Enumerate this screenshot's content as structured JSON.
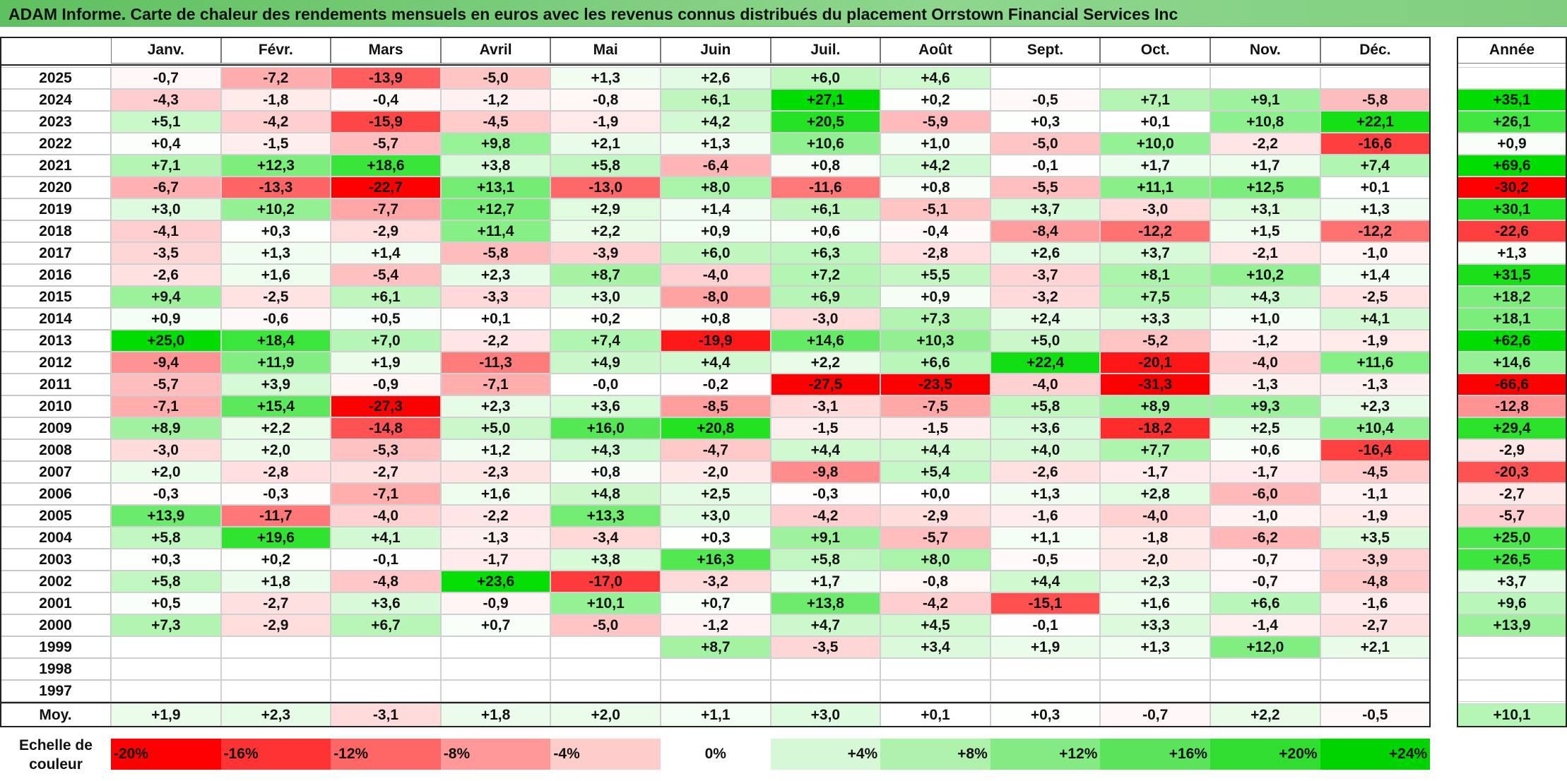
{
  "title": "ADAM Informe. Carte de chaleur des rendements mensuels en euros avec les revenus connus distribués du placement Orrstown Financial Services Inc",
  "chart_data": {
    "type": "heatmap",
    "title": "ADAM Informe. Carte de chaleur des rendements mensuels en euros avec les revenus connus distribués du placement Orrstown Financial Services Inc",
    "columns": [
      "Janv.",
      "Févr.",
      "Mars",
      "Avril",
      "Mai",
      "Juin",
      "Juil.",
      "Août",
      "Sept.",
      "Oct.",
      "Nov.",
      "Déc."
    ],
    "year_column_label": "Année",
    "rows": [
      {
        "year": "2025",
        "values": [
          "-0,7",
          "-7,2",
          "-13,9",
          "-5,0",
          "+1,3",
          "+2,6",
          "+6,0",
          "+4,6",
          "",
          "",
          "",
          ""
        ],
        "annual": ""
      },
      {
        "year": "2024",
        "values": [
          "-4,3",
          "-1,8",
          "-0,4",
          "-1,2",
          "-0,8",
          "+6,1",
          "+27,1",
          "+0,2",
          "-0,5",
          "+7,1",
          "+9,1",
          "-5,8"
        ],
        "annual": "+35,1"
      },
      {
        "year": "2023",
        "values": [
          "+5,1",
          "-4,2",
          "-15,9",
          "-4,5",
          "-1,9",
          "+4,2",
          "+20,5",
          "-5,9",
          "+0,3",
          "+0,1",
          "+10,8",
          "+22,1"
        ],
        "annual": "+26,1"
      },
      {
        "year": "2022",
        "values": [
          "+0,4",
          "-1,5",
          "-5,7",
          "+9,8",
          "+2,1",
          "+1,3",
          "+10,6",
          "+1,0",
          "-5,0",
          "+10,0",
          "-2,2",
          "-16,6"
        ],
        "annual": "+0,9"
      },
      {
        "year": "2021",
        "values": [
          "+7,1",
          "+12,3",
          "+18,6",
          "+3,8",
          "+5,8",
          "-6,4",
          "+0,8",
          "+4,2",
          "-0,1",
          "+1,7",
          "+1,7",
          "+7,4"
        ],
        "annual": "+69,6"
      },
      {
        "year": "2020",
        "values": [
          "-6,7",
          "-13,3",
          "-22,7",
          "+13,1",
          "-13,0",
          "+8,0",
          "-11,6",
          "+0,8",
          "-5,5",
          "+11,1",
          "+12,5",
          "+0,1"
        ],
        "annual": "-30,2"
      },
      {
        "year": "2019",
        "values": [
          "+3,0",
          "+10,2",
          "-7,7",
          "+12,7",
          "+2,9",
          "+1,4",
          "+6,1",
          "-5,1",
          "+3,7",
          "-3,0",
          "+3,1",
          "+1,3"
        ],
        "annual": "+30,1"
      },
      {
        "year": "2018",
        "values": [
          "-4,1",
          "+0,3",
          "-2,9",
          "+11,4",
          "+2,2",
          "+0,9",
          "+0,6",
          "-0,4",
          "-8,4",
          "-12,2",
          "+1,5",
          "-12,2"
        ],
        "annual": "-22,6"
      },
      {
        "year": "2017",
        "values": [
          "-3,5",
          "+1,3",
          "+1,4",
          "-5,8",
          "-3,9",
          "+6,0",
          "+6,3",
          "-2,8",
          "+2,6",
          "+3,7",
          "-2,1",
          "-1,0"
        ],
        "annual": "+1,3"
      },
      {
        "year": "2016",
        "values": [
          "-2,6",
          "+1,6",
          "-5,4",
          "+2,3",
          "+8,7",
          "-4,0",
          "+7,2",
          "+5,5",
          "-3,7",
          "+8,1",
          "+10,2",
          "+1,4"
        ],
        "annual": "+31,5"
      },
      {
        "year": "2015",
        "values": [
          "+9,4",
          "-2,5",
          "+6,1",
          "-3,3",
          "+3,0",
          "-8,0",
          "+6,9",
          "+0,9",
          "-3,2",
          "+7,5",
          "+4,3",
          "-2,5"
        ],
        "annual": "+18,2"
      },
      {
        "year": "2014",
        "values": [
          "+0,9",
          "-0,6",
          "+0,5",
          "+0,1",
          "+0,2",
          "+0,8",
          "-3,0",
          "+7,3",
          "+2,4",
          "+3,3",
          "+1,0",
          "+4,1"
        ],
        "annual": "+18,1"
      },
      {
        "year": "2013",
        "values": [
          "+25,0",
          "+18,4",
          "+7,0",
          "-2,2",
          "+7,4",
          "-19,9",
          "+14,6",
          "+10,3",
          "+5,0",
          "-5,2",
          "-1,2",
          "-1,9"
        ],
        "annual": "+62,6"
      },
      {
        "year": "2012",
        "values": [
          "-9,4",
          "+11,9",
          "+1,9",
          "-11,3",
          "+4,9",
          "+4,4",
          "+2,2",
          "+6,6",
          "+22,4",
          "-20,1",
          "-4,0",
          "+11,6"
        ],
        "annual": "+14,6"
      },
      {
        "year": "2011",
        "values": [
          "-5,7",
          "+3,9",
          "-0,9",
          "-7,1",
          "-0,0",
          "-0,2",
          "-27,5",
          "-23,5",
          "-4,0",
          "-31,3",
          "-1,3",
          "-1,3"
        ],
        "annual": "-66,6"
      },
      {
        "year": "2010",
        "values": [
          "-7,1",
          "+15,4",
          "-27,3",
          "+2,3",
          "+3,6",
          "-8,5",
          "-3,1",
          "-7,5",
          "+5,8",
          "+8,9",
          "+9,3",
          "+2,3"
        ],
        "annual": "-12,8"
      },
      {
        "year": "2009",
        "values": [
          "+8,9",
          "+2,2",
          "-14,8",
          "+5,0",
          "+16,0",
          "+20,8",
          "-1,5",
          "-1,5",
          "+3,6",
          "-18,2",
          "+2,5",
          "+10,4"
        ],
        "annual": "+29,4"
      },
      {
        "year": "2008",
        "values": [
          "-3,0",
          "+2,0",
          "-5,3",
          "+1,2",
          "+4,3",
          "-4,7",
          "+4,4",
          "+4,4",
          "+4,0",
          "+7,7",
          "+0,6",
          "-16,4"
        ],
        "annual": "-2,9"
      },
      {
        "year": "2007",
        "values": [
          "+2,0",
          "-2,8",
          "-2,7",
          "-2,3",
          "+0,8",
          "-2,0",
          "-9,8",
          "+5,4",
          "-2,6",
          "-1,7",
          "-1,7",
          "-4,5"
        ],
        "annual": "-20,3"
      },
      {
        "year": "2006",
        "values": [
          "-0,3",
          "-0,3",
          "-7,1",
          "+1,6",
          "+4,8",
          "+2,5",
          "-0,3",
          "+0,0",
          "+1,3",
          "+2,8",
          "-6,0",
          "-1,1"
        ],
        "annual": "-2,7"
      },
      {
        "year": "2005",
        "values": [
          "+13,9",
          "-11,7",
          "-4,0",
          "-2,2",
          "+13,3",
          "+3,0",
          "-4,2",
          "-2,9",
          "-1,6",
          "-4,0",
          "-1,0",
          "-1,9"
        ],
        "annual": "-5,7"
      },
      {
        "year": "2004",
        "values": [
          "+5,8",
          "+19,6",
          "+4,1",
          "-1,3",
          "-3,4",
          "+0,3",
          "+9,1",
          "-5,7",
          "+1,1",
          "-1,8",
          "-6,2",
          "+3,5"
        ],
        "annual": "+25,0"
      },
      {
        "year": "2003",
        "values": [
          "+0,3",
          "+0,2",
          "-0,1",
          "-1,7",
          "+3,8",
          "+16,3",
          "+5,8",
          "+8,0",
          "-0,5",
          "-2,0",
          "-0,7",
          "-3,9"
        ],
        "annual": "+26,5"
      },
      {
        "year": "2002",
        "values": [
          "+5,8",
          "+1,8",
          "-4,8",
          "+23,6",
          "-17,0",
          "-3,2",
          "+1,7",
          "-0,8",
          "+4,4",
          "+2,3",
          "-0,7",
          "-4,8"
        ],
        "annual": "+3,7"
      },
      {
        "year": "2001",
        "values": [
          "+0,5",
          "-2,7",
          "+3,6",
          "-0,9",
          "+10,1",
          "+0,7",
          "+13,8",
          "-4,2",
          "-15,1",
          "+1,6",
          "+6,6",
          "-1,6"
        ],
        "annual": "+9,6"
      },
      {
        "year": "2000",
        "values": [
          "+7,3",
          "-2,9",
          "+6,7",
          "+0,7",
          "-5,0",
          "-1,2",
          "+4,7",
          "+4,5",
          "-0,1",
          "+3,3",
          "-1,4",
          "-2,7"
        ],
        "annual": "+13,9"
      },
      {
        "year": "1999",
        "values": [
          "",
          "",
          "",
          "",
          "",
          "+8,7",
          "-3,5",
          "+3,4",
          "+1,9",
          "+1,3",
          "+12,0",
          "+2,1"
        ],
        "annual": ""
      },
      {
        "year": "1998",
        "values": [
          "",
          "",
          "",
          "",
          "",
          "",
          "",
          "",
          "",
          "",
          "",
          ""
        ],
        "annual": ""
      },
      {
        "year": "1997",
        "values": [
          "",
          "",
          "",
          "",
          "",
          "",
          "",
          "",
          "",
          "",
          "",
          ""
        ],
        "annual": ""
      }
    ],
    "average": {
      "label": "Moy.",
      "values": [
        "+1,9",
        "+2,3",
        "-3,1",
        "+1,8",
        "+2,0",
        "+1,1",
        "+3,0",
        "+0,1",
        "+0,3",
        "-0,7",
        "+2,2",
        "-0,5"
      ],
      "annual": "+10,1"
    },
    "color_scale": {
      "label_line1": "Echelle de",
      "label_line2": "couleur",
      "stops": [
        {
          "label": "-20%",
          "value": -20,
          "color": "#ff0000"
        },
        {
          "label": "-16%",
          "value": -16,
          "color": "#ff3333"
        },
        {
          "label": "-12%",
          "value": -12,
          "color": "#ff6666"
        },
        {
          "label": "-8%",
          "value": -8,
          "color": "#ff9999"
        },
        {
          "label": "-4%",
          "value": -4,
          "color": "#ffcccc"
        },
        {
          "label": "0%",
          "value": 0,
          "color": "#ffffff"
        },
        {
          "label": "+4%",
          "value": 4,
          "color": "#d6f8d6"
        },
        {
          "label": "+8%",
          "value": 8,
          "color": "#adf1ad"
        },
        {
          "label": "+12%",
          "value": 12,
          "color": "#84eb84"
        },
        {
          "label": "+16%",
          "value": 16,
          "color": "#5be45b"
        },
        {
          "label": "+20%",
          "value": 20,
          "color": "#32dd32"
        },
        {
          "label": "+24%",
          "value": 24,
          "color": "#00d400"
        }
      ]
    }
  }
}
